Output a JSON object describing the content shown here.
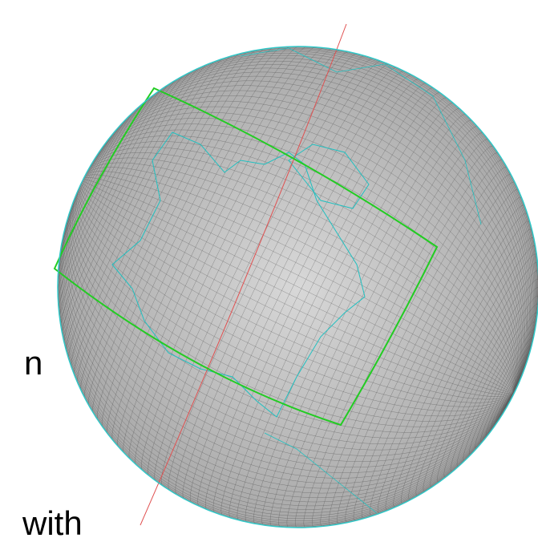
{
  "texts": [
    "n",
    "with"
  ]
}
